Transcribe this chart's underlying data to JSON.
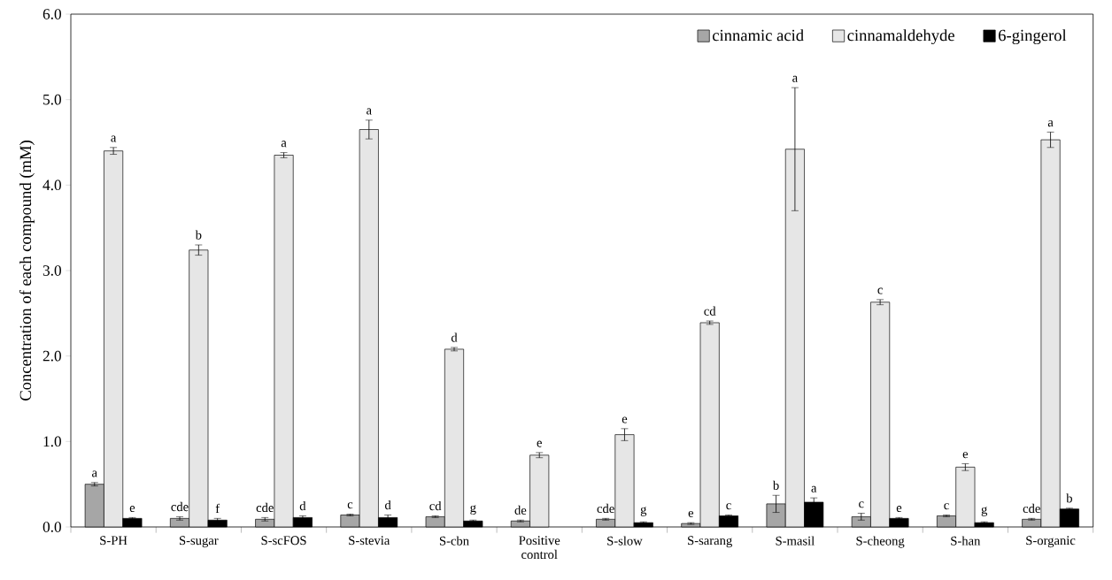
{
  "chart_data": {
    "type": "bar",
    "ylabel": "Concentration of each compound (mM)",
    "categories": [
      "S-PH",
      "S-sugar",
      "S-scFOS",
      "S-stevia",
      "S-cbn",
      "Positive control",
      "S-slow",
      "S-sarang",
      "S-masil",
      "S-cheong",
      "S-han",
      "S-organic"
    ],
    "series": [
      {
        "name": "cinnamic acid",
        "color": "#a6a6a6",
        "values": [
          0.5,
          0.1,
          0.09,
          0.14,
          0.12,
          0.07,
          0.09,
          0.04,
          0.27,
          0.12,
          0.13,
          0.09
        ],
        "errors": [
          0.02,
          0.02,
          0.02,
          0.01,
          0.01,
          0.01,
          0.01,
          0.01,
          0.1,
          0.04,
          0.01,
          0.01
        ]
      },
      {
        "name": "cinnamaldehyde",
        "color": "#e6e6e6",
        "values": [
          4.4,
          3.24,
          4.35,
          4.65,
          2.08,
          0.84,
          1.08,
          2.39,
          4.42,
          2.63,
          0.7,
          4.53
        ],
        "errors": [
          0.04,
          0.06,
          0.03,
          0.11,
          0.02,
          0.03,
          0.07,
          0.02,
          0.72,
          0.03,
          0.04,
          0.09
        ]
      },
      {
        "name": "6-gingerol",
        "color": "#000000",
        "values": [
          0.1,
          0.08,
          0.11,
          0.11,
          0.07,
          null,
          0.05,
          0.13,
          0.29,
          0.1,
          0.05,
          0.21
        ],
        "errors": [
          0.01,
          0.02,
          0.02,
          0.03,
          0.01,
          null,
          0.01,
          0.01,
          0.05,
          0.01,
          0.01,
          0.01
        ]
      }
    ],
    "ylim": [
      0,
      6
    ],
    "yticks": [
      {
        "value": 0,
        "label": "0.0"
      },
      {
        "value": 1,
        "label": "1.0"
      },
      {
        "value": 2,
        "label": "2.0"
      },
      {
        "value": 3,
        "label": "3.0"
      },
      {
        "value": 4,
        "label": "4.0"
      },
      {
        "value": 5,
        "label": "5.0"
      },
      {
        "value": 6,
        "label": "6.0"
      }
    ],
    "legend": "top right",
    "annotations": [
      "a",
      "cde",
      "cde",
      "c",
      "cd",
      "de",
      "cde",
      "e",
      "b",
      "c",
      "c",
      "cde",
      "a",
      "b",
      "a",
      "a",
      "d",
      "e",
      "e",
      "cd",
      "a",
      "c",
      "e",
      "a",
      "e",
      "f",
      "d",
      "d",
      "g",
      "g",
      "c",
      "a",
      "e",
      "g",
      "b"
    ]
  }
}
